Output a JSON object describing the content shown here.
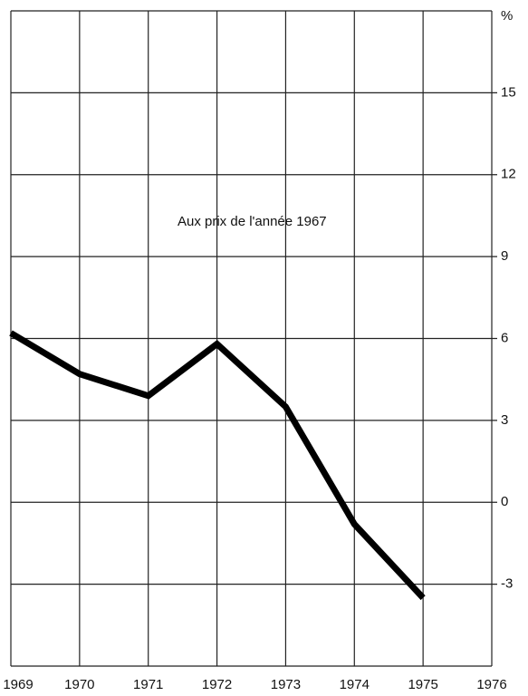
{
  "chart_data": {
    "type": "line",
    "annotation": "Aux prix de l'année 1967",
    "y_unit": "%",
    "categories": [
      "1969",
      "1970",
      "1971",
      "1972",
      "1973",
      "1974",
      "1975",
      "1976"
    ],
    "values": [
      6.2,
      4.7,
      3.9,
      5.8,
      3.5,
      -0.8,
      -3.5,
      null
    ],
    "color": "#000000",
    "ylim": [
      -6,
      18
    ],
    "yticks": [
      -3,
      0,
      3,
      6,
      9,
      12,
      15
    ],
    "grid": true
  }
}
